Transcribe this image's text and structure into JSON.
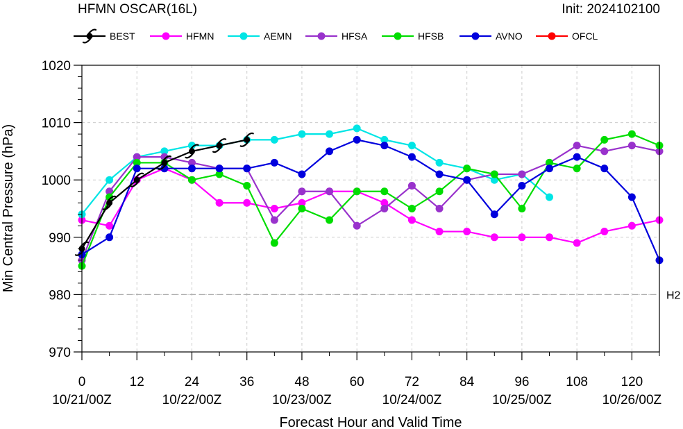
{
  "header": {
    "title": "HFMN OSCAR(16L)",
    "init": "Init: 2024102100"
  },
  "chart_data": {
    "type": "line",
    "xlabel": "Forecast Hour and Valid Time",
    "ylabel": "Min Central Pressure (hPa)",
    "xlim": [
      0,
      126
    ],
    "ylim": [
      970,
      1020
    ],
    "x_ticks": [
      0,
      12,
      24,
      36,
      48,
      60,
      72,
      84,
      96,
      108,
      120
    ],
    "x_date_labels": [
      {
        "x": 0,
        "label": "10/21/00Z"
      },
      {
        "x": 24,
        "label": "10/22/00Z"
      },
      {
        "x": 48,
        "label": "10/23/00Z"
      },
      {
        "x": 72,
        "label": "10/24/00Z"
      },
      {
        "x": 96,
        "label": "10/25/00Z"
      },
      {
        "x": 120,
        "label": "10/26/00Z"
      }
    ],
    "y_ticks": [
      970,
      980,
      990,
      1000,
      1010,
      1020
    ],
    "grid": true,
    "legend_placement": "top",
    "reference_line": {
      "y": 980,
      "label": "H2"
    },
    "series": [
      {
        "name": "BEST",
        "color": "#000000",
        "marker": "hurricane-symbol",
        "x": [
          0,
          6,
          12,
          18,
          24,
          30,
          36
        ],
        "y": [
          988,
          996,
          1000,
          1003,
          1005,
          1006,
          1007
        ]
      },
      {
        "name": "HFMN",
        "color": "#ff00ff",
        "x": [
          0,
          6,
          12,
          18,
          24,
          30,
          36,
          42,
          48,
          54,
          60,
          66,
          72,
          78,
          84,
          90,
          96,
          102,
          108,
          114,
          120,
          126
        ],
        "y": [
          993,
          992,
          1000,
          1002,
          1000,
          996,
          996,
          995,
          996,
          998,
          998,
          996,
          993,
          991,
          991,
          990,
          990,
          990,
          989,
          991,
          992,
          993
        ]
      },
      {
        "name": "AEMN",
        "color": "#00e5e5",
        "x": [
          0,
          6,
          12,
          18,
          24,
          30,
          36,
          42,
          48,
          54,
          60,
          66,
          72,
          78,
          84,
          90,
          96,
          102
        ],
        "y": [
          994,
          1000,
          1004,
          1005,
          1006,
          1006,
          1007,
          1007,
          1008,
          1008,
          1009,
          1007,
          1006,
          1003,
          1002,
          1000,
          1001,
          997
        ]
      },
      {
        "name": "HFSA",
        "color": "#9932cc",
        "x": [
          0,
          6,
          12,
          18,
          24,
          30,
          36,
          42,
          48,
          54,
          60,
          66,
          72,
          78,
          84,
          90,
          96,
          102,
          108,
          114,
          120,
          126
        ],
        "y": [
          986,
          998,
          1004,
          1004,
          1003,
          1002,
          1002,
          993,
          998,
          998,
          992,
          995,
          999,
          995,
          1000,
          1001,
          1001,
          1003,
          1006,
          1005,
          1006,
          1005
        ]
      },
      {
        "name": "HFSB",
        "color": "#00dd00",
        "x": [
          0,
          6,
          12,
          18,
          24,
          30,
          36,
          42,
          48,
          54,
          60,
          66,
          72,
          78,
          84,
          90,
          96,
          102,
          108,
          114,
          120,
          126
        ],
        "y": [
          985,
          997,
          1003,
          1003,
          1000,
          1001,
          999,
          989,
          995,
          993,
          998,
          998,
          995,
          998,
          1002,
          1001,
          995,
          1003,
          1002,
          1007,
          1008,
          1006
        ]
      },
      {
        "name": "AVNO",
        "color": "#0000dd",
        "x": [
          0,
          6,
          12,
          18,
          24,
          30,
          36,
          42,
          48,
          54,
          60,
          66,
          72,
          78,
          84,
          90,
          96,
          102,
          108,
          114,
          120,
          126
        ],
        "y": [
          987,
          990,
          1002,
          1002,
          1002,
          1002,
          1002,
          1003,
          1001,
          1005,
          1007,
          1006,
          1004,
          1001,
          1000,
          994,
          999,
          1002,
          1004,
          1002,
          997,
          986
        ]
      },
      {
        "name": "OFCL",
        "color": "#ff0000",
        "x": [],
        "y": []
      }
    ]
  }
}
